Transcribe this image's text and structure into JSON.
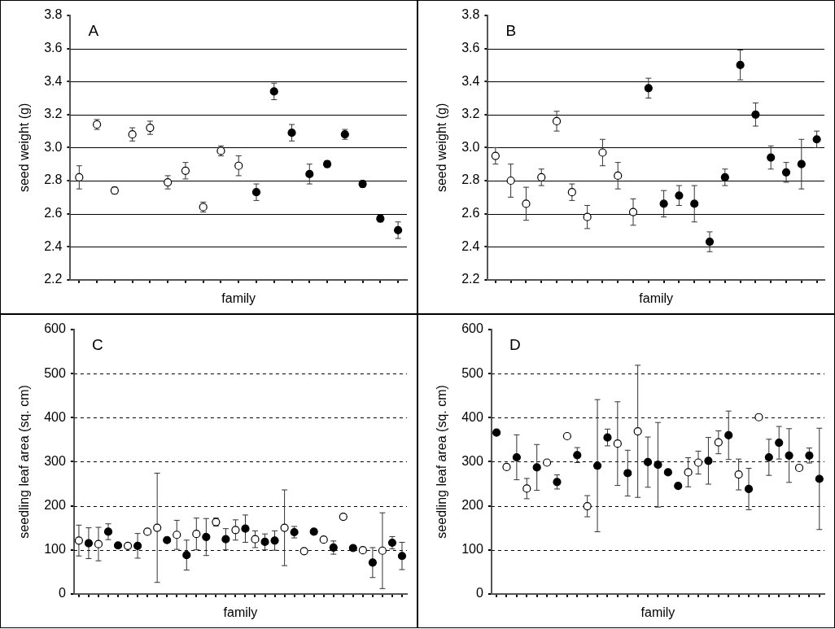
{
  "chart_data": [
    {
      "type": "scatter",
      "title": "A",
      "xlabel": "family",
      "ylabel": "seed weight (g)",
      "categories": [
        null,
        null,
        null,
        null,
        null,
        null,
        null,
        null,
        null,
        null,
        null,
        null,
        null,
        null,
        null,
        null,
        null,
        null,
        null
      ],
      "ylim": [
        2.2,
        3.8
      ],
      "yticks": [
        2.2,
        2.4,
        2.6,
        2.8,
        {
          "value": 3,
          "label": "3.0"
        },
        3.2,
        3.4,
        3.6,
        3.8
      ],
      "grid": "y",
      "tick_labels": "y",
      "marker": "circle",
      "series": [
        {
          "color": "#000000",
          "values": [
            2.82,
            3.14,
            2.74,
            3.08,
            3.12,
            2.79,
            2.86,
            2.64,
            2.98,
            2.89,
            null,
            null,
            null,
            null,
            null,
            null,
            null,
            null,
            null
          ],
          "errors": [
            0.07,
            0.03,
            0.02,
            0.04,
            0.04,
            0.04,
            0.05,
            0.03,
            0.03,
            0.06,
            null,
            null,
            null,
            null,
            null,
            null,
            null,
            null,
            null
          ]
        },
        {
          "color": "#000000",
          "values": [
            null,
            null,
            null,
            null,
            null,
            null,
            null,
            null,
            null,
            null,
            2.73,
            3.34,
            3.09,
            2.84,
            2.9,
            3.08,
            2.78,
            2.57,
            2.5
          ],
          "errors": [
            null,
            null,
            null,
            null,
            null,
            null,
            null,
            null,
            null,
            null,
            0.05,
            0.05,
            0.05,
            0.06,
            0.02,
            0.03,
            0.02,
            0.02,
            0.05
          ]
        }
      ]
    },
    {
      "type": "scatter",
      "title": "B",
      "xlabel": "family",
      "ylabel": "seed weight (g)",
      "categories": [
        null,
        null,
        null,
        null,
        null,
        null,
        null,
        null,
        null,
        null,
        null,
        null,
        null,
        null,
        null,
        null,
        null,
        null,
        null,
        null,
        null,
        null
      ],
      "ylim": [
        2.2,
        3.8
      ],
      "yticks": [
        2.2,
        2.4,
        2.6,
        2.8,
        {
          "value": 3,
          "label": "3.0"
        },
        3.2,
        3.4,
        3.6,
        3.8
      ],
      "grid": "y",
      "tick_labels": "y",
      "marker": "circle",
      "series": [
        {
          "color": "#000000",
          "values": [
            2.95,
            2.8,
            2.66,
            2.82,
            3.16,
            2.73,
            2.58,
            2.97,
            2.83,
            2.61,
            null,
            null,
            null,
            null,
            null,
            null,
            null,
            null,
            null,
            null,
            null,
            null
          ],
          "errors": [
            0.05,
            0.1,
            0.1,
            0.05,
            0.06,
            0.05,
            0.07,
            0.08,
            0.08,
            0.08,
            null,
            null,
            null,
            null,
            null,
            null,
            null,
            null,
            null,
            null,
            null,
            null
          ]
        },
        {
          "color": "#000000",
          "values": [
            null,
            null,
            null,
            null,
            null,
            null,
            null,
            null,
            null,
            null,
            3.36,
            2.66,
            2.71,
            2.66,
            2.43,
            2.82,
            3.5,
            3.2,
            2.94,
            2.85,
            2.9,
            3.05
          ],
          "errors": [
            null,
            null,
            null,
            null,
            null,
            null,
            null,
            null,
            null,
            null,
            0.06,
            0.08,
            0.06,
            0.11,
            0.06,
            0.05,
            0.09,
            0.07,
            0.07,
            0.06,
            0.15,
            0.05
          ]
        }
      ]
    },
    {
      "type": "scatter",
      "title": "C",
      "xlabel": "family",
      "ylabel": "seedling leaf area (sq. cm)",
      "categories": [
        null,
        null,
        null,
        null,
        null,
        null,
        null,
        null,
        null,
        null,
        null,
        null,
        null,
        null,
        null,
        null,
        null,
        null,
        null,
        null,
        null,
        null,
        null,
        null,
        null,
        null,
        null,
        null,
        null,
        null,
        null,
        null,
        null,
        null
      ],
      "ylim": [
        0,
        600
      ],
      "yticks": [
        0,
        100,
        200,
        300,
        400,
        500,
        600
      ],
      "grid": "y",
      "tick_labels": "y",
      "marker": "circle",
      "series": [
        {
          "color": "#000000",
          "values": [
            121,
            null,
            113,
            null,
            null,
            109,
            null,
            141,
            150,
            null,
            134,
            null,
            136,
            null,
            163,
            null,
            145,
            null,
            124,
            null,
            null,
            150,
            null,
            97,
            null,
            123,
            null,
            175,
            null,
            99,
            null,
            98,
            null,
            null
          ],
          "errors": [
            35,
            null,
            38,
            null,
            null,
            null,
            null,
            null,
            124,
            null,
            33,
            null,
            36,
            null,
            9,
            null,
            23,
            null,
            19,
            null,
            null,
            86,
            null,
            null,
            null,
            null,
            null,
            null,
            null,
            null,
            null,
            86,
            null,
            null
          ]
        },
        {
          "color": "#000000",
          "values": [
            null,
            115,
            null,
            141,
            110,
            null,
            109,
            null,
            null,
            122,
            null,
            88,
            null,
            129,
            null,
            124,
            null,
            148,
            null,
            118,
            121,
            null,
            140,
            null,
            141,
            null,
            105,
            null,
            104,
            null,
            71,
            null,
            116,
            86
          ],
          "errors": [
            null,
            35,
            null,
            18,
            null,
            null,
            28,
            null,
            null,
            null,
            null,
            34,
            null,
            42,
            null,
            24,
            null,
            31,
            null,
            18,
            22,
            null,
            13,
            null,
            null,
            null,
            15,
            null,
            null,
            null,
            34,
            null,
            14,
            31
          ]
        }
      ]
    },
    {
      "type": "scatter",
      "title": "D",
      "xlabel": "family",
      "ylabel": "seedling leaf area (sq. cm)",
      "categories": [
        null,
        null,
        null,
        null,
        null,
        null,
        null,
        null,
        null,
        null,
        null,
        null,
        null,
        null,
        null,
        null,
        null,
        null,
        null,
        null,
        null,
        null,
        null,
        null,
        null,
        null,
        null,
        null,
        null,
        null,
        null,
        null,
        null
      ],
      "ylim": [
        0,
        600
      ],
      "yticks": [
        0,
        100,
        200,
        300,
        400,
        500,
        600
      ],
      "grid": "y",
      "tick_labels": "y",
      "marker": "circle",
      "series": [
        {
          "color": "#000000",
          "values": [
            null,
            288,
            null,
            239,
            null,
            298,
            null,
            358,
            null,
            199,
            null,
            null,
            341,
            null,
            369,
            null,
            null,
            null,
            null,
            276,
            298,
            null,
            344,
            null,
            271,
            null,
            401,
            null,
            null,
            null,
            286,
            null,
            null
          ],
          "errors": [
            null,
            null,
            null,
            23,
            null,
            null,
            null,
            null,
            null,
            24,
            null,
            null,
            95,
            null,
            150,
            null,
            null,
            null,
            null,
            33,
            26,
            null,
            26,
            null,
            35,
            null,
            null,
            null,
            null,
            null,
            null,
            null,
            null
          ]
        },
        {
          "color": "#000000",
          "values": [
            366,
            null,
            310,
            null,
            287,
            null,
            254,
            null,
            315,
            null,
            291,
            355,
            null,
            274,
            null,
            299,
            293,
            276,
            245,
            null,
            null,
            302,
            null,
            360,
            null,
            238,
            null,
            310,
            343,
            314,
            null,
            314,
            261
          ],
          "errors": [
            null,
            null,
            51,
            null,
            52,
            null,
            16,
            null,
            17,
            null,
            150,
            19,
            null,
            52,
            null,
            57,
            96,
            null,
            null,
            null,
            null,
            53,
            null,
            55,
            null,
            47,
            null,
            41,
            37,
            61,
            null,
            17,
            115
          ]
        }
      ]
    }
  ]
}
